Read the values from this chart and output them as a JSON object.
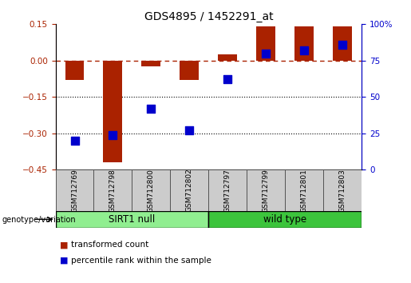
{
  "title": "GDS4895 / 1452291_at",
  "samples": [
    "GSM712769",
    "GSM712798",
    "GSM712800",
    "GSM712802",
    "GSM712797",
    "GSM712799",
    "GSM712801",
    "GSM712803"
  ],
  "groups": [
    {
      "label": "SIRT1 null",
      "indices": [
        0,
        1,
        2,
        3
      ],
      "color": "#90EE90"
    },
    {
      "label": "wild type",
      "indices": [
        4,
        5,
        6,
        7
      ],
      "color": "#3CC43C"
    }
  ],
  "red_bars": [
    -0.08,
    -0.42,
    -0.025,
    -0.08,
    0.025,
    0.14,
    0.14,
    0.14
  ],
  "blue_dots_right": [
    20,
    24,
    42,
    27,
    62,
    80,
    82,
    86
  ],
  "ylim_left": [
    -0.45,
    0.15
  ],
  "ylim_right": [
    0,
    100
  ],
  "yticks_left": [
    0.15,
    0.0,
    -0.15,
    -0.3,
    -0.45
  ],
  "yticks_right": [
    100,
    75,
    50,
    25,
    0
  ],
  "hlines": [
    -0.15,
    -0.3
  ],
  "dashed_hline": 0.0,
  "bar_color": "#AA2200",
  "dot_color": "#0000CC",
  "group_label_prefix": "genotype/variation",
  "legend_items": [
    {
      "color": "#AA2200",
      "label": "transformed count"
    },
    {
      "color": "#0000CC",
      "label": "percentile rank within the sample"
    }
  ],
  "bar_width": 0.5,
  "dot_size": 45,
  "title_fontsize": 10,
  "tick_fontsize": 7.5,
  "label_fontsize": 7.5,
  "sample_fontsize": 6.5,
  "group_fontsize": 8.5
}
